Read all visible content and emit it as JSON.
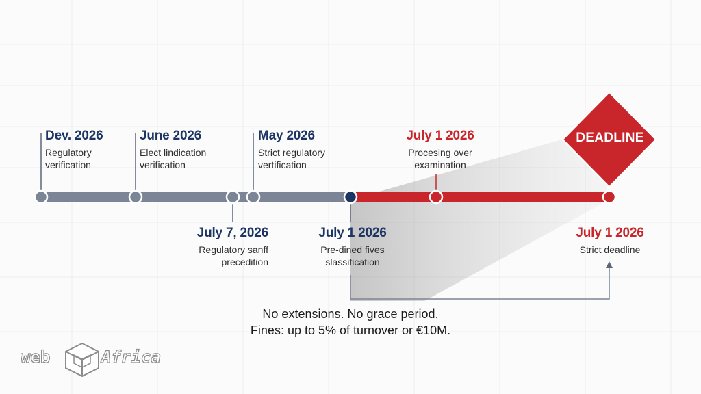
{
  "milestones_above": [
    {
      "date": "Dev. 2026",
      "line1": "Regulatory",
      "line2": "verification"
    },
    {
      "date": "June 2026",
      "line1": "Elect lindication",
      "line2": "verification"
    },
    {
      "date": "May 2026",
      "line1": "Strict regulatory",
      "line2": "vertification"
    },
    {
      "date": "July 1 2026",
      "line1": "Procesing over",
      "line2": "examination"
    }
  ],
  "milestones_below": [
    {
      "date": "July 7, 2026",
      "line1": "Regulatory sanff",
      "line2": "precedition"
    },
    {
      "date": "July 1 2026",
      "line1": "Pre-dined fives",
      "line2": "slassification"
    },
    {
      "date": "July 1 2026",
      "line1": "Strict deadline"
    }
  ],
  "deadline_badge": "DEADLINE",
  "note": {
    "line1": "No extensions. No grace period.",
    "line2": "Fines: up to 5% of turnover or €10M."
  },
  "logo": {
    "left": "web",
    "right": "Africa"
  },
  "colors": {
    "navy": "#1c3563",
    "red": "#c8262b",
    "gray_line": "#7b8595"
  }
}
